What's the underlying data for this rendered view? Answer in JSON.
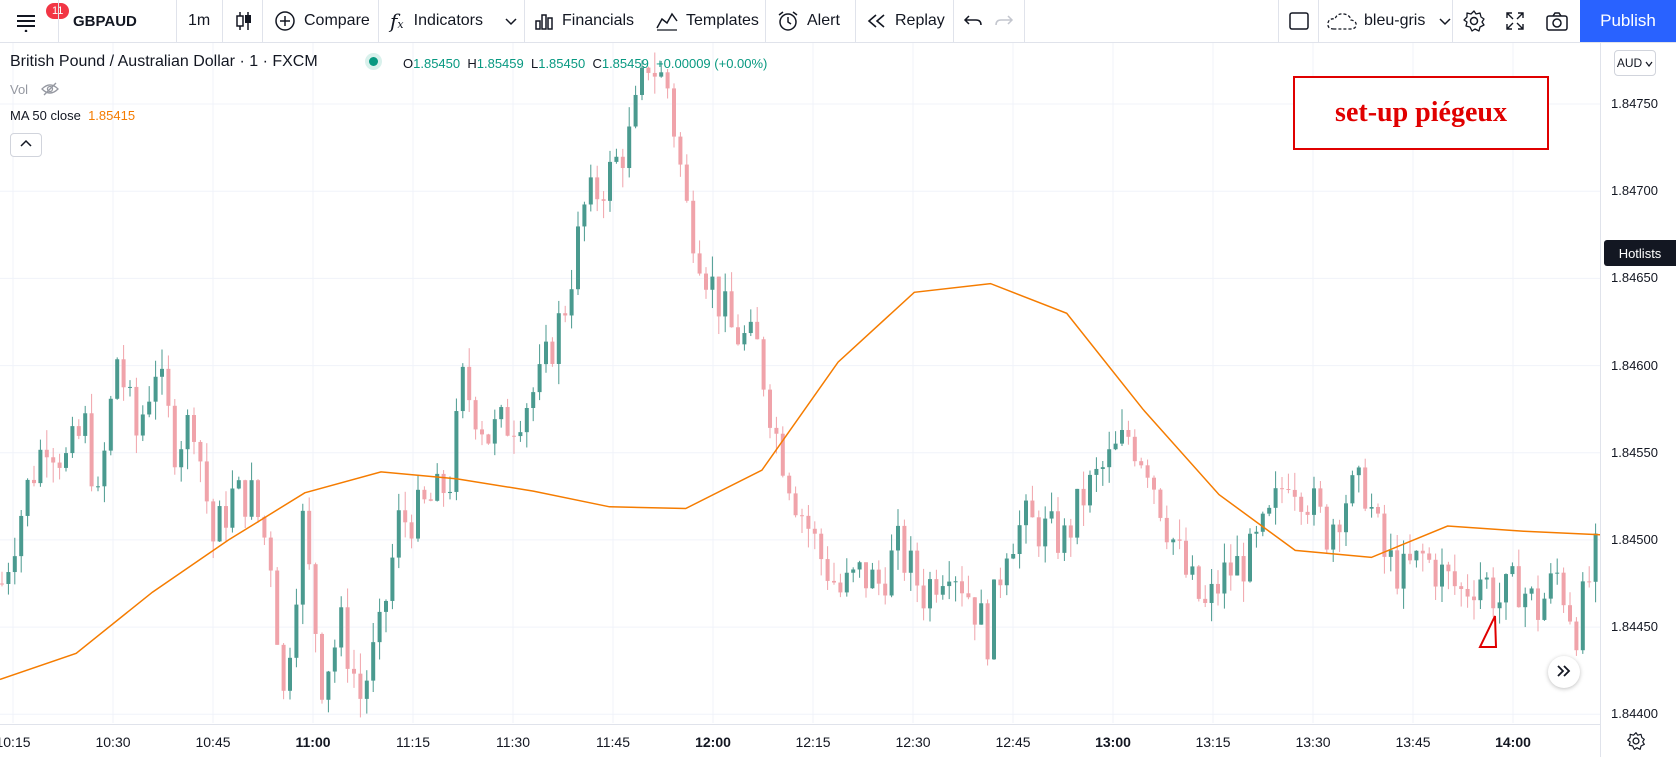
{
  "toolbar": {
    "notification_count": "11",
    "symbol": "GBPAUD",
    "interval": "1m",
    "compare_label": "Compare",
    "indicators_label": "Indicators",
    "financials_label": "Financials",
    "templates_label": "Templates",
    "alert_label": "Alert",
    "replay_label": "Replay",
    "layout_name": "bleu-gris",
    "publish_label": "Publish"
  },
  "legend": {
    "title": "British Pound / Australian Dollar · 1 · FXCM",
    "open_key": "O",
    "open": "1.85450",
    "high_key": "H",
    "high": "1.85459",
    "low_key": "L",
    "low": "1.85450",
    "close_key": "C",
    "close": "1.85459",
    "change": "+0.00009 (+0.00%)",
    "vol_label": "Vol",
    "ma_label": "MA 50 close",
    "ma_value": "1.85415"
  },
  "annotation": {
    "text": "set-up piégeux",
    "color": "#e00000"
  },
  "price_axis": {
    "currency": "AUD",
    "hotlists_label": "Hotlists",
    "labels": [
      "1.84750",
      "1.84700",
      "1.84650",
      "1.84600",
      "1.84550",
      "1.84500",
      "1.84450",
      "1.84400"
    ]
  },
  "time_axis": {
    "labels": [
      "10:15",
      "10:30",
      "10:45",
      "11:00",
      "11:15",
      "11:30",
      "11:45",
      "12:00",
      "12:15",
      "12:30",
      "12:45",
      "13:00",
      "13:15",
      "13:30",
      "13:45",
      "14:00"
    ],
    "bold": [
      "11:00",
      "12:00",
      "13:00",
      "14:00"
    ]
  },
  "colors": {
    "up": "#4a9a8f",
    "down": "#f0a3aa",
    "ma": "#f57c00",
    "accent": "#2962ff"
  },
  "chart_data": {
    "type": "candlestick",
    "series": [
      {
        "name": "GBPAUD",
        "note": "1-minute candles, approx. 10:15–14:00"
      },
      {
        "name": "MA 50 close",
        "values": [
          1.8442,
          1.84435,
          1.8447,
          1.845,
          1.84527,
          1.84539,
          1.84535,
          1.84528,
          1.84519,
          1.84518,
          1.8454,
          1.84602,
          1.84642,
          1.84647,
          1.8463,
          1.84575,
          1.84526,
          1.84494,
          1.8449,
          1.84508,
          1.84505,
          1.84503
        ]
      }
    ],
    "ylim": [
      1.84395,
      1.84785
    ]
  }
}
